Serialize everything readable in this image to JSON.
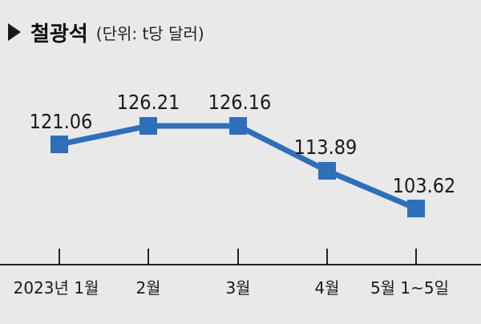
{
  "title": "철광석",
  "subtitle": "(단위: t당 달러)",
  "chart_data": {
    "type": "line",
    "categories": [
      "2023년 1월",
      "2월",
      "3월",
      "4월",
      "5월 1~5일"
    ],
    "values": [
      121.06,
      126.21,
      126.16,
      113.89,
      103.62
    ],
    "value_labels": [
      "121.06",
      "126.21",
      "126.16",
      "113.89",
      "103.62"
    ],
    "ylim": [
      98,
      136
    ],
    "grid": false,
    "legend": "none",
    "colors": {
      "line": "#2f6fba",
      "marker": "#2f6fba",
      "background": "#e9e9e9",
      "axis": "#222222"
    }
  }
}
